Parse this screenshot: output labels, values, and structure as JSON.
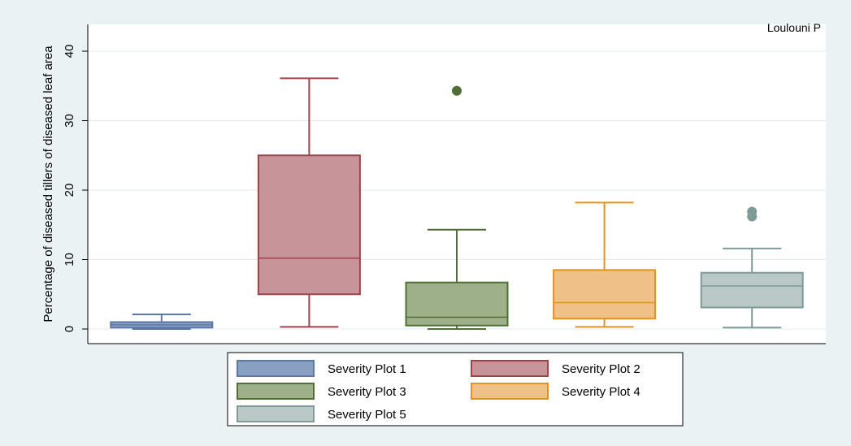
{
  "chart_data": {
    "type": "box",
    "title": "",
    "annotation": "Loulouni P",
    "xlabel": "",
    "ylabel": "Percentage of diseased tillers of diseased leaf area",
    "ylim": [
      -2.2,
      40
    ],
    "yticks": [
      0,
      10,
      20,
      30,
      40
    ],
    "grid": true,
    "legend_position": "bottom",
    "series": [
      {
        "name": "Severity Plot 1",
        "min": 0,
        "q1": 0.2,
        "median": 0.6,
        "q3": 1.0,
        "max": 2.1,
        "outliers": [],
        "color": "#5c79a6",
        "fill": "#8aa0c2"
      },
      {
        "name": "Severity Plot 2",
        "min": 0.3,
        "q1": 5.0,
        "median": 10.2,
        "q3": 25.0,
        "max": 36.1,
        "outliers": [],
        "color": "#a0424b",
        "fill": "#c69499"
      },
      {
        "name": "Severity Plot 3",
        "min": 0,
        "q1": 0.5,
        "median": 1.7,
        "q3": 6.7,
        "max": 14.3,
        "outliers": [
          34.3
        ],
        "color": "#4f6f34",
        "fill": "#9db089"
      },
      {
        "name": "Severity Plot 4",
        "min": 0.3,
        "q1": 1.5,
        "median": 3.8,
        "q3": 8.5,
        "max": 18.2,
        "outliers": [],
        "color": "#e39222",
        "fill": "#efc088"
      },
      {
        "name": "Severity Plot 5",
        "min": 0.2,
        "q1": 3.1,
        "median": 6.2,
        "q3": 8.1,
        "max": 11.6,
        "outliers": [
          16.2,
          16.9
        ],
        "color": "#7e9b98",
        "fill": "#bac9c7"
      }
    ]
  }
}
